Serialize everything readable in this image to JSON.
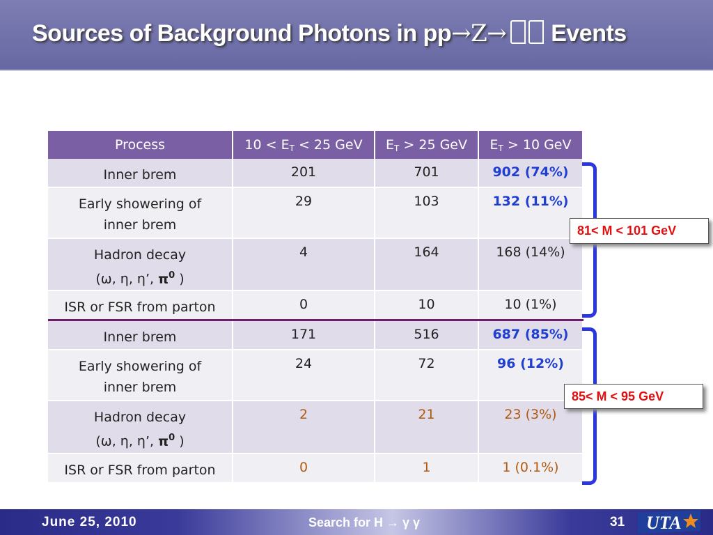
{
  "title": {
    "part1": "Sources of Background Photons in pp",
    "arrow1": "→",
    "z": "Z",
    "arrow2": "→",
    "part2": "Events"
  },
  "table": {
    "headers": [
      "Process",
      "10 < E",
      "T",
      " < 25 GeV",
      "E",
      "T",
      " > 25 GeV",
      "E",
      "T",
      " > 10 GeV"
    ],
    "rows": [
      {
        "p1": "Inner brem",
        "p2": "",
        "a": "201",
        "b": "701",
        "c": "902 (74%)"
      },
      {
        "p1": "Early showering of",
        "p2": "inner brem",
        "a": "29",
        "b": "103",
        "c": "132 (11%)"
      },
      {
        "p1": "Hadron decay",
        "p2a": "(ω, η, η’, ",
        "p2b": "π",
        "p2c": "0",
        "p2d": " )",
        "a": "4",
        "b": "164",
        "c": "168 (14%)"
      },
      {
        "p1": "ISR or FSR from parton",
        "p2": "",
        "a": "0",
        "b": "10",
        "c": "10 (1%)"
      },
      {
        "p1": "Inner brem",
        "p2": "",
        "a": "171",
        "b": "516",
        "c": "687 (85%)"
      },
      {
        "p1": "Early showering of",
        "p2": "inner brem",
        "a": "24",
        "b": "72",
        "c": "96 (12%)"
      },
      {
        "p1": "Hadron decay",
        "p2a": "(ω, η, η’, ",
        "p2b": "π",
        "p2c": "0",
        "p2d": " )",
        "a": "2",
        "b": "21",
        "c": "23 (3%)"
      },
      {
        "p1": "ISR or FSR from parton",
        "p2": "",
        "a": "0",
        "b": "1",
        "c": "1 (0.1%)"
      }
    ]
  },
  "callouts": {
    "upper": "81< M < 101 GeV",
    "lower": "85< M < 95 GeV"
  },
  "footer": {
    "date": "June 25, 2010",
    "talk": "Search for H → γ γ",
    "page": "31"
  },
  "logo_text": "UTA",
  "colors": {
    "title_bar": "#6f6fab",
    "header_row": "#7b5fa4",
    "highlight_blue": "#1f3fd0",
    "highlight_brown": "#b05a10",
    "bracket": "#2a37e0",
    "callout_text": "#e01010"
  }
}
